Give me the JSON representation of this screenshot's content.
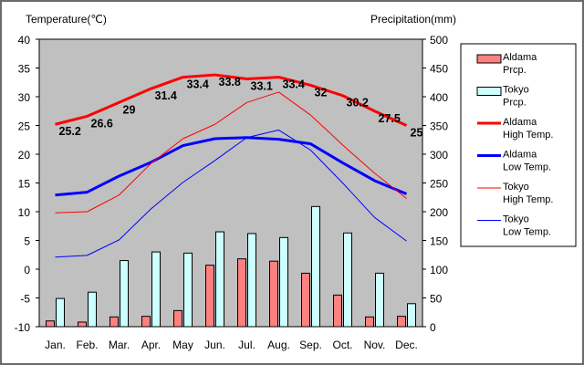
{
  "chart_data": {
    "type": "bar+line",
    "title": "",
    "ylabel_left": "Temperature(℃)",
    "ylabel_right": "Precipitation(mm)",
    "categories": [
      "Jan.",
      "Feb.",
      "Mar.",
      "Apr.",
      "May",
      "Jun.",
      "Jul.",
      "Aug.",
      "Sep.",
      "Oct.",
      "Nov.",
      "Dec."
    ],
    "ylim_left": [
      -10,
      40
    ],
    "ylim_right": [
      0,
      500
    ],
    "left_ticks": [
      -10,
      -5,
      0,
      5,
      10,
      15,
      20,
      25,
      30,
      35,
      40
    ],
    "right_ticks": [
      0,
      50,
      100,
      150,
      200,
      250,
      300,
      350,
      400,
      450,
      500
    ],
    "grid": false,
    "plot_background": "#c0c0c0",
    "bar_series": [
      {
        "name": "Aldama\nPrcp.",
        "color": "#ff8080",
        "values": [
          10,
          8,
          17,
          18,
          28,
          107,
          118,
          114,
          93,
          55,
          17,
          18
        ]
      },
      {
        "name": "Tokyo\nPrcp.",
        "color": "#ccffff",
        "values": [
          49,
          60,
          115,
          130,
          128,
          165,
          162,
          155,
          209,
          163,
          93,
          40
        ]
      }
    ],
    "line_series": [
      {
        "name": "Aldama\nHigh Temp.",
        "color": "#ff0000",
        "width": 3,
        "values": [
          25.2,
          26.6,
          29,
          31.4,
          33.4,
          33.8,
          33.1,
          33.4,
          32,
          30.2,
          27.5,
          25
        ],
        "labels": [
          "25.2",
          "26.6",
          "29",
          "31.4",
          "33.4",
          "33.8",
          "33.1",
          "33.4",
          "32",
          "30.2",
          "27.5",
          "25"
        ]
      },
      {
        "name": "Aldama\nLow Temp.",
        "color": "#0000ff",
        "width": 3,
        "values": [
          12.9,
          13.4,
          16.2,
          18.6,
          21.5,
          22.7,
          22.9,
          22.6,
          21.8,
          18.5,
          15.4,
          13.1
        ]
      },
      {
        "name": "Tokyo\nHigh Temp.",
        "color": "#ff0000",
        "width": 1,
        "values": [
          9.8,
          10,
          12.9,
          18.4,
          22.7,
          25.2,
          29,
          30.8,
          26.8,
          21.6,
          16.7,
          12.3
        ]
      },
      {
        "name": "Tokyo\nLow Temp.",
        "color": "#0000ff",
        "width": 1,
        "values": [
          2.1,
          2.4,
          5.1,
          10.5,
          15.1,
          18.9,
          22.9,
          24.2,
          20.7,
          15,
          9,
          4.9
        ]
      }
    ]
  }
}
